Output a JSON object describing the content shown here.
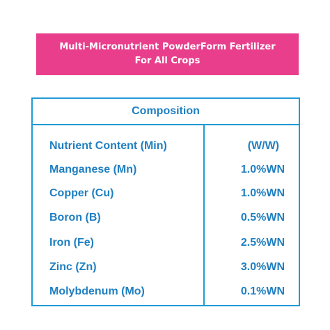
{
  "banner": {
    "line1": "Multi-Micronutrient PowderForm Fertilizer",
    "line2": "For All Crops"
  },
  "table": {
    "title": "Composition",
    "header": {
      "nutrient": "Nutrient Content (Min)",
      "value": "(W/W)"
    },
    "rows": [
      {
        "nutrient": "Manganese (Mn)",
        "value": "1.0%WN"
      },
      {
        "nutrient": "Copper (Cu)",
        "value": "1.0%WN"
      },
      {
        "nutrient": "Boron (B)",
        "value": "0.5%WN"
      },
      {
        "nutrient": "Iron (Fe)",
        "value": "2.5%WN"
      },
      {
        "nutrient": "Zinc (Zn)",
        "value": "3.0%WN"
      },
      {
        "nutrient": "Molybdenum (Mo)",
        "value": "0.1%WN"
      }
    ]
  },
  "colors": {
    "banner_bg": "#e83e8c",
    "table_text": "#1f7fc1",
    "table_border": "#1f9ad6"
  }
}
